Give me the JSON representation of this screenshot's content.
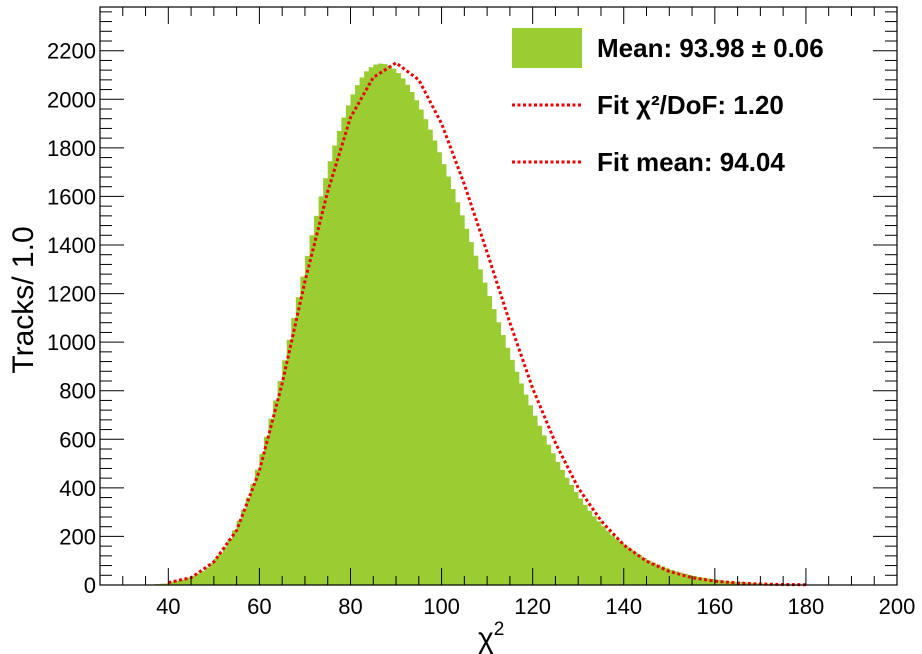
{
  "chart_data": {
    "type": "bar",
    "xlabel": "χ²",
    "xlabel_base": "χ",
    "xlabel_sup": "2",
    "ylabel": "Tracks/ 1.0",
    "xlim": [
      25,
      200
    ],
    "ylim": [
      0,
      2380
    ],
    "bin_width": 1.0,
    "x_ticks": [
      40,
      60,
      80,
      100,
      120,
      140,
      160,
      180,
      200
    ],
    "y_ticks": [
      0,
      200,
      400,
      600,
      800,
      1000,
      1200,
      1400,
      1600,
      1800,
      2000,
      2200
    ],
    "grid": false,
    "legend_position": "top-right",
    "series": [
      {
        "kind": "histogram",
        "color": "#9acd32",
        "bins_start": 36,
        "values": [
          2,
          4,
          5,
          6,
          12,
          15,
          18,
          22,
          30,
          38,
          47,
          57,
          72,
          90,
          108,
          132,
          158,
          190,
          225,
          265,
          310,
          360,
          415,
          475,
          540,
          610,
          685,
          760,
          840,
          925,
          1010,
          1100,
          1185,
          1270,
          1355,
          1440,
          1520,
          1600,
          1675,
          1745,
          1810,
          1870,
          1925,
          1975,
          2020,
          2058,
          2090,
          2115,
          2132,
          2143,
          2147,
          2145,
          2138,
          2126,
          2108,
          2086,
          2060,
          2030,
          1996,
          1958,
          1918,
          1875,
          1830,
          1782,
          1733,
          1682,
          1630,
          1576,
          1522,
          1467,
          1412,
          1356,
          1300,
          1245,
          1190,
          1136,
          1082,
          1029,
          977,
          927,
          878,
          830,
          784,
          740,
          697,
          656,
          616,
          578,
          542,
          507,
          474,
          442,
          412,
          383,
          356,
          330,
          306,
          283,
          262,
          242,
          223,
          205,
          189,
          173,
          159,
          146,
          133,
          122,
          111,
          101,
          92,
          84,
          76,
          69,
          62,
          56,
          51,
          46,
          41,
          37,
          33,
          30,
          27,
          24,
          21,
          19,
          17,
          15,
          13,
          12,
          10,
          9,
          8,
          7,
          6,
          5,
          5,
          4,
          4,
          3
        ]
      },
      {
        "kind": "fit-curve",
        "color": "#ee0000",
        "style": "dotted",
        "x": [
          40,
          45,
          50,
          55,
          60,
          65,
          70,
          75,
          80,
          85,
          90,
          95,
          100,
          105,
          110,
          115,
          120,
          125,
          130,
          135,
          140,
          145,
          150,
          155,
          160,
          165,
          170,
          175,
          180
        ],
        "values": [
          10,
          30,
          95,
          225,
          470,
          830,
          1250,
          1620,
          1925,
          2090,
          2150,
          2080,
          1900,
          1650,
          1370,
          1080,
          810,
          585,
          400,
          265,
          165,
          98,
          56,
          30,
          16,
          8,
          4,
          2,
          1
        ]
      }
    ],
    "legend": [
      {
        "kind": "box",
        "color": "#9acd32",
        "text": "Mean: 93.98  ± 0.06"
      },
      {
        "kind": "line",
        "color": "#ee0000",
        "text": "Fit  χ²/DoF: 1.20"
      },
      {
        "kind": "line",
        "color": "#ee0000",
        "text": "Fit mean: 94.04"
      }
    ]
  }
}
